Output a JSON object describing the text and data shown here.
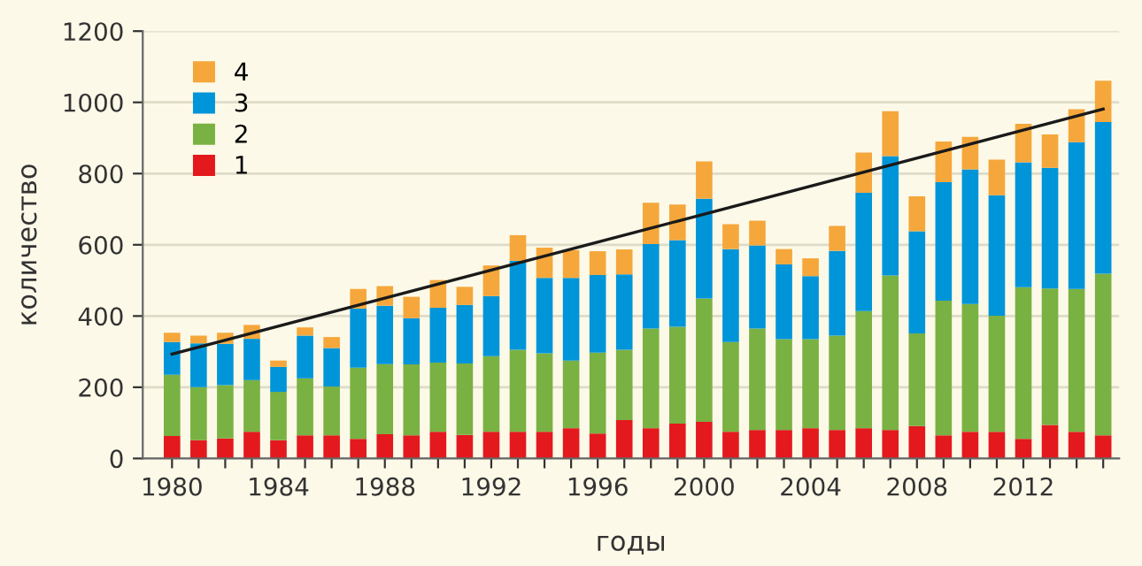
{
  "chart_data": {
    "type": "bar",
    "stacked": true,
    "xlabel": "годы",
    "ylabel": "количество",
    "x": [
      1980,
      1981,
      1982,
      1983,
      1984,
      1985,
      1986,
      1987,
      1988,
      1989,
      1990,
      1991,
      1992,
      1993,
      1994,
      1995,
      1996,
      1997,
      1998,
      1999,
      2000,
      2001,
      2002,
      2003,
      2004,
      2005,
      2006,
      2007,
      2008,
      2009,
      2010,
      2011,
      2012,
      2013,
      2014,
      2015
    ],
    "series": [
      {
        "name": "1",
        "color": "#e3191e",
        "values": [
          63,
          51,
          56,
          75,
          51,
          65,
          65,
          55,
          68,
          65,
          75,
          66,
          75,
          75,
          75,
          85,
          70,
          108,
          85,
          98,
          103,
          75,
          80,
          80,
          85,
          80,
          85,
          80,
          91,
          65,
          75,
          75,
          55,
          94,
          75,
          65
        ]
      },
      {
        "name": "2",
        "color": "#79b142",
        "values": [
          172,
          149,
          150,
          145,
          136,
          160,
          137,
          200,
          197,
          199,
          194,
          201,
          212,
          230,
          220,
          190,
          227,
          197,
          280,
          272,
          346,
          252,
          285,
          255,
          250,
          265,
          329,
          434,
          260,
          378,
          359,
          326,
          426,
          383,
          401,
          454
        ]
      },
      {
        "name": "3",
        "color": "#0095d9",
        "values": [
          92,
          123,
          116,
          116,
          70,
          120,
          108,
          166,
          164,
          130,
          154,
          164,
          169,
          250,
          212,
          232,
          218,
          212,
          237,
          243,
          280,
          261,
          233,
          210,
          177,
          238,
          332,
          335,
          287,
          333,
          378,
          338,
          351,
          339,
          412,
          426
        ]
      },
      {
        "name": "4",
        "color": "#f5a73b",
        "values": [
          26,
          22,
          31,
          39,
          18,
          23,
          31,
          55,
          55,
          60,
          78,
          51,
          86,
          72,
          85,
          78,
          67,
          70,
          116,
          100,
          105,
          70,
          70,
          43,
          50,
          70,
          113,
          126,
          98,
          114,
          91,
          100,
          108,
          94,
          93,
          116
        ]
      },
      {
        "type": "line",
        "color": "#1a1a1a",
        "x": [
          1980,
          2015
        ],
        "values": [
          293,
          981
        ],
        "line_style": "solid",
        "marker": "none"
      }
    ],
    "xlim": [
      1978.9,
      2015.6
    ],
    "xticks": [
      1980,
      {
        "value": 1981,
        "label": null
      },
      {
        "value": 1982,
        "label": null
      },
      {
        "value": 1983,
        "label": null
      },
      1984,
      {
        "value": 1985,
        "label": null
      },
      {
        "value": 1986,
        "label": null
      },
      {
        "value": 1987,
        "label": null
      },
      1988,
      {
        "value": 1989,
        "label": null
      },
      {
        "value": 1990,
        "label": null
      },
      {
        "value": 1991,
        "label": null
      },
      1992,
      {
        "value": 1993,
        "label": null
      },
      {
        "value": 1994,
        "label": null
      },
      {
        "value": 1995,
        "label": null
      },
      1996,
      {
        "value": 1997,
        "label": null
      },
      {
        "value": 1998,
        "label": null
      },
      {
        "value": 1999,
        "label": null
      },
      2000,
      {
        "value": 2001,
        "label": null
      },
      {
        "value": 2002,
        "label": null
      },
      {
        "value": 2003,
        "label": null
      },
      2004,
      {
        "value": 2005,
        "label": null
      },
      {
        "value": 2006,
        "label": null
      },
      {
        "value": 2007,
        "label": null
      },
      2008,
      {
        "value": 2009,
        "label": null
      },
      {
        "value": 2010,
        "label": null
      },
      {
        "value": 2011,
        "label": null
      },
      2012,
      {
        "value": 2013,
        "label": null
      },
      {
        "value": 2014,
        "label": null
      },
      {
        "value": 2015,
        "label": null
      }
    ],
    "ylim": [
      0,
      1200
    ],
    "yticks": [
      0,
      200,
      400,
      600,
      800,
      1000,
      1200
    ],
    "grid": "y",
    "legend": "top left"
  }
}
